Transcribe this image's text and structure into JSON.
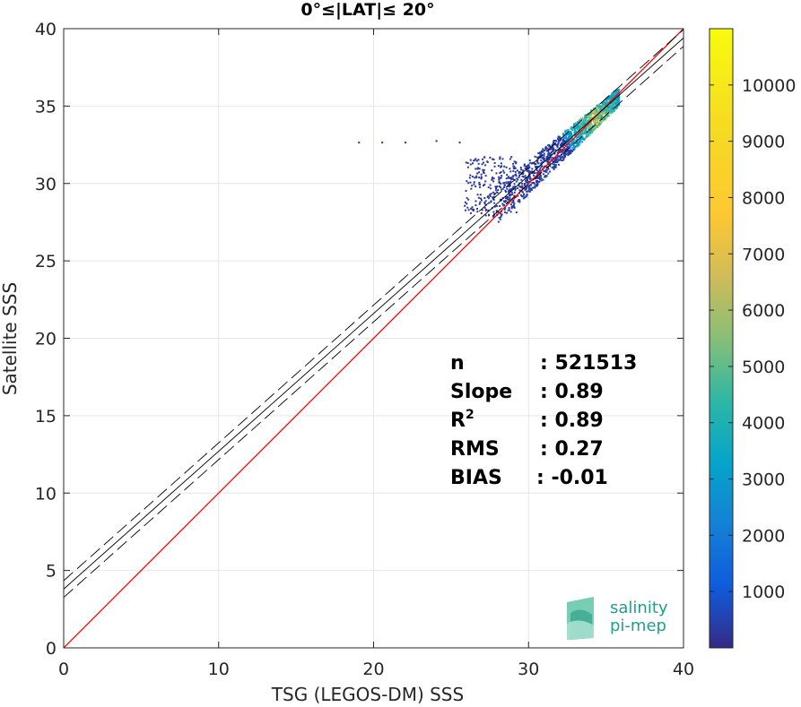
{
  "chart_data": {
    "type": "heatmap",
    "title": "0°≤|LAT|≤ 20°",
    "xlabel": "TSG (LEGOS-DM) SSS",
    "ylabel": "Satellite SSS",
    "xlim": [
      0,
      40
    ],
    "ylim": [
      0,
      40
    ],
    "x_ticks": [
      "0",
      "10",
      "20",
      "30",
      "40"
    ],
    "y_ticks": [
      "0",
      "5",
      "10",
      "15",
      "20",
      "25",
      "30",
      "35",
      "40"
    ],
    "grid": true,
    "colorbar": {
      "range": [
        0,
        11000
      ],
      "ticks": [
        "1000",
        "2000",
        "3000",
        "4000",
        "5000",
        "6000",
        "7000",
        "8000",
        "9000",
        "10000"
      ]
    },
    "reference_line": {
      "slope": 1,
      "intercept": 0,
      "color": "#ff0000"
    },
    "fit_line": {
      "slope": 0.89,
      "intercept": 3.8,
      "band": 0.54,
      "color": "#000000"
    },
    "density": {
      "core_x": [
        27.5,
        35.8
      ],
      "core_slope": 0.89,
      "core_intercept": 3.8,
      "peak_point": [
        34.3,
        34.3
      ],
      "tail": [
        [
          19,
          32.7
        ],
        [
          20.5,
          32.7
        ],
        [
          22,
          32.7
        ],
        [
          24,
          32.8
        ],
        [
          25.5,
          32.7
        ]
      ]
    },
    "stats": [
      {
        "label": "n",
        "value": ": 521513"
      },
      {
        "label": "Slope",
        "value": ": 0.89"
      },
      {
        "label": "R",
        "sup": "2",
        "value": ": 0.89"
      },
      {
        "label": "RMS",
        "value": ": 0.27"
      },
      {
        "label": "BIAS",
        "value": ": -0.01"
      }
    ],
    "logo": {
      "line1": "salinity",
      "line2": "pi-mep"
    }
  }
}
